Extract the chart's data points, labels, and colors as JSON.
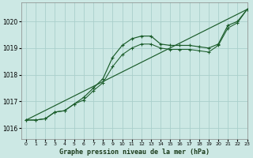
{
  "title": "Graphe pression niveau de la mer (hPa)",
  "bg_color": "#cce8e4",
  "grid_color": "#aacfcb",
  "line_color": "#1a5c2a",
  "xlim": [
    -0.5,
    23
  ],
  "ylim": [
    1015.6,
    1020.7
  ],
  "yticks": [
    1016,
    1017,
    1018,
    1019,
    1020
  ],
  "xticks": [
    0,
    1,
    2,
    3,
    4,
    5,
    6,
    7,
    8,
    9,
    10,
    11,
    12,
    13,
    14,
    15,
    16,
    17,
    18,
    19,
    20,
    21,
    22,
    23
  ],
  "series1_x": [
    0,
    1,
    2,
    3,
    4,
    5,
    6,
    7,
    8,
    9,
    10,
    11,
    12,
    13,
    14,
    15,
    16,
    17,
    18,
    19,
    20,
    21,
    22,
    23
  ],
  "series1_y": [
    1016.3,
    1016.3,
    1016.35,
    1016.6,
    1016.65,
    1016.9,
    1017.15,
    1017.5,
    1017.85,
    1018.65,
    1019.1,
    1019.35,
    1019.45,
    1019.45,
    1019.15,
    1019.1,
    1019.1,
    1019.1,
    1019.05,
    1019.0,
    1019.15,
    1019.85,
    1020.0,
    1020.45
  ],
  "series2_x": [
    0,
    1,
    2,
    3,
    4,
    5,
    6,
    7,
    8,
    9,
    10,
    11,
    12,
    13,
    14,
    15,
    16,
    17,
    18,
    19,
    20,
    21,
    22,
    23
  ],
  "series2_y": [
    1016.3,
    1016.3,
    1016.35,
    1016.6,
    1016.65,
    1016.9,
    1017.05,
    1017.4,
    1017.7,
    1018.3,
    1018.75,
    1019.0,
    1019.15,
    1019.15,
    1019.0,
    1018.95,
    1018.95,
    1018.95,
    1018.9,
    1018.85,
    1019.1,
    1019.75,
    1019.95,
    1020.45
  ],
  "series3_x": [
    0,
    23
  ],
  "series3_y": [
    1016.3,
    1020.45
  ]
}
